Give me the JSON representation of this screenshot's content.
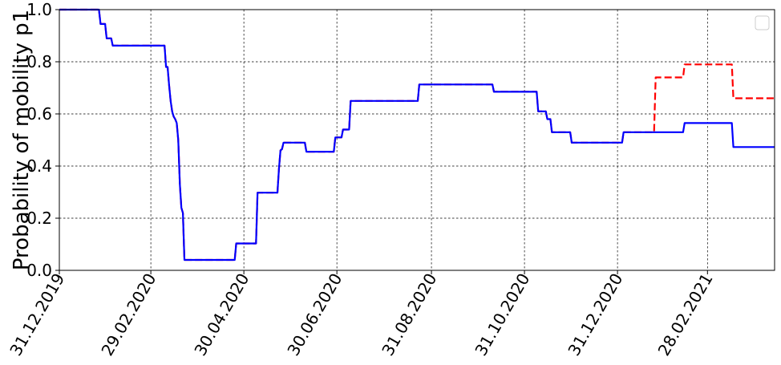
{
  "chart_data": {
    "type": "line",
    "title": "",
    "xlabel": "",
    "ylabel": "Probability of mobility p1",
    "grid": true,
    "legend": "top-right",
    "x_tick_labels": [
      "31.12.2019",
      "29.02.2020",
      "30.04.2020",
      "30.06.2020",
      "31.08.2020",
      "31.10.2020",
      "31.12.2020",
      "28.02.2021"
    ],
    "x_ticks": [
      "2019-12-31",
      "2020-02-29",
      "2020-04-30",
      "2020-06-30",
      "2020-08-31",
      "2020-10-31",
      "2020-12-31",
      "2021-02-28"
    ],
    "xlim": [
      "2019-12-31",
      "2021-04-13"
    ],
    "ylim": [
      0,
      1.0
    ],
    "y_tick_labels": [
      "0.0",
      "0.2",
      "0.4",
      "0.6",
      "0.8",
      "1.0"
    ],
    "y_ticks": [
      0,
      0.2,
      0.4,
      0.6,
      0.8,
      1.0
    ],
    "series": [
      {
        "color": "#ff0000",
        "style": "dashed",
        "points": [
          [
            "2019-12-31",
            1.0
          ],
          [
            "2020-01-26",
            1.0
          ],
          [
            "2020-01-27",
            0.945
          ],
          [
            "2020-01-30",
            0.945
          ],
          [
            "2020-01-31",
            0.89
          ],
          [
            "2020-02-03",
            0.89
          ],
          [
            "2020-02-04",
            0.862
          ],
          [
            "2020-03-09",
            0.862
          ],
          [
            "2020-03-10",
            0.78
          ],
          [
            "2020-03-11",
            0.78
          ],
          [
            "2020-03-12",
            0.71
          ],
          [
            "2020-03-13",
            0.65
          ],
          [
            "2020-03-14",
            0.61
          ],
          [
            "2020-03-15",
            0.59
          ],
          [
            "2020-03-16",
            0.58
          ],
          [
            "2020-03-17",
            0.565
          ],
          [
            "2020-03-18",
            0.5
          ],
          [
            "2020-03-19",
            0.33
          ],
          [
            "2020-03-20",
            0.24
          ],
          [
            "2020-03-21",
            0.22
          ],
          [
            "2020-03-22",
            0.04
          ],
          [
            "2020-04-24",
            0.04
          ],
          [
            "2020-04-25",
            0.103
          ],
          [
            "2020-05-08",
            0.103
          ],
          [
            "2020-05-09",
            0.298
          ],
          [
            "2020-05-22",
            0.298
          ],
          [
            "2020-05-23",
            0.39
          ],
          [
            "2020-05-24",
            0.46
          ],
          [
            "2020-05-25",
            0.465
          ],
          [
            "2020-05-26",
            0.49
          ],
          [
            "2020-06-09",
            0.49
          ],
          [
            "2020-06-10",
            0.455
          ],
          [
            "2020-06-28",
            0.455
          ],
          [
            "2020-06-29",
            0.51
          ],
          [
            "2020-07-03",
            0.51
          ],
          [
            "2020-07-04",
            0.54
          ],
          [
            "2020-07-08",
            0.54
          ],
          [
            "2020-07-09",
            0.65
          ],
          [
            "2020-08-22",
            0.65
          ],
          [
            "2020-08-23",
            0.713
          ],
          [
            "2020-10-10",
            0.713
          ],
          [
            "2020-10-11",
            0.685
          ],
          [
            "2020-11-08",
            0.685
          ],
          [
            "2020-11-09",
            0.61
          ],
          [
            "2020-11-14",
            0.61
          ],
          [
            "2020-11-15",
            0.58
          ],
          [
            "2020-11-17",
            0.58
          ],
          [
            "2020-11-18",
            0.53
          ],
          [
            "2020-11-30",
            0.53
          ],
          [
            "2020-12-01",
            0.49
          ],
          [
            "2020-12-17",
            0.49
          ],
          [
            "2021-01-03",
            0.49
          ],
          [
            "2021-01-04",
            0.53
          ],
          [
            "2021-01-24",
            0.53
          ],
          [
            "2021-01-25",
            0.74
          ],
          [
            "2021-02-12",
            0.74
          ],
          [
            "2021-02-13",
            0.79
          ],
          [
            "2021-03-16",
            0.79
          ],
          [
            "2021-03-17",
            0.66
          ],
          [
            "2021-04-13",
            0.66
          ]
        ]
      },
      {
        "color": "#0000ff",
        "style": "solid",
        "points": [
          [
            "2019-12-31",
            1.0
          ],
          [
            "2020-01-26",
            1.0
          ],
          [
            "2020-01-27",
            0.945
          ],
          [
            "2020-01-30",
            0.945
          ],
          [
            "2020-01-31",
            0.89
          ],
          [
            "2020-02-03",
            0.89
          ],
          [
            "2020-02-04",
            0.862
          ],
          [
            "2020-03-09",
            0.862
          ],
          [
            "2020-03-10",
            0.78
          ],
          [
            "2020-03-11",
            0.78
          ],
          [
            "2020-03-12",
            0.71
          ],
          [
            "2020-03-13",
            0.65
          ],
          [
            "2020-03-14",
            0.61
          ],
          [
            "2020-03-15",
            0.59
          ],
          [
            "2020-03-16",
            0.58
          ],
          [
            "2020-03-17",
            0.565
          ],
          [
            "2020-03-18",
            0.5
          ],
          [
            "2020-03-19",
            0.33
          ],
          [
            "2020-03-20",
            0.24
          ],
          [
            "2020-03-21",
            0.22
          ],
          [
            "2020-03-22",
            0.04
          ],
          [
            "2020-04-24",
            0.04
          ],
          [
            "2020-04-25",
            0.103
          ],
          [
            "2020-05-08",
            0.103
          ],
          [
            "2020-05-09",
            0.298
          ],
          [
            "2020-05-22",
            0.298
          ],
          [
            "2020-05-23",
            0.39
          ],
          [
            "2020-05-24",
            0.46
          ],
          [
            "2020-05-25",
            0.465
          ],
          [
            "2020-05-26",
            0.49
          ],
          [
            "2020-06-09",
            0.49
          ],
          [
            "2020-06-10",
            0.455
          ],
          [
            "2020-06-28",
            0.455
          ],
          [
            "2020-06-29",
            0.51
          ],
          [
            "2020-07-03",
            0.51
          ],
          [
            "2020-07-04",
            0.54
          ],
          [
            "2020-07-08",
            0.54
          ],
          [
            "2020-07-09",
            0.65
          ],
          [
            "2020-08-22",
            0.65
          ],
          [
            "2020-08-23",
            0.713
          ],
          [
            "2020-10-10",
            0.713
          ],
          [
            "2020-10-11",
            0.685
          ],
          [
            "2020-11-08",
            0.685
          ],
          [
            "2020-11-09",
            0.61
          ],
          [
            "2020-11-14",
            0.61
          ],
          [
            "2020-11-15",
            0.58
          ],
          [
            "2020-11-17",
            0.58
          ],
          [
            "2020-11-18",
            0.53
          ],
          [
            "2020-11-30",
            0.53
          ],
          [
            "2020-12-01",
            0.49
          ],
          [
            "2020-12-17",
            0.49
          ],
          [
            "2021-01-03",
            0.49
          ],
          [
            "2021-01-04",
            0.53
          ],
          [
            "2021-02-12",
            0.53
          ],
          [
            "2021-02-13",
            0.565
          ],
          [
            "2021-03-16",
            0.565
          ],
          [
            "2021-03-17",
            0.473
          ],
          [
            "2021-04-13",
            0.473
          ]
        ]
      }
    ]
  }
}
